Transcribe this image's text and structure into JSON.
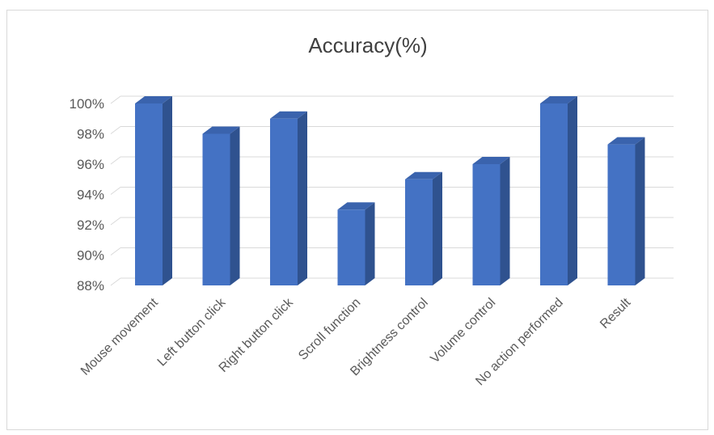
{
  "chart_data": {
    "type": "bar",
    "title": "Accuracy(%)",
    "categories": [
      "Mouse movement",
      "Left button click",
      "Right button click",
      "Scroll function",
      "Brightness control",
      "Volume control",
      "No action performed",
      "Result"
    ],
    "values": [
      100,
      98,
      99,
      93,
      95,
      96,
      100,
      97.3
    ],
    "ylim": [
      88,
      100
    ],
    "yticks": [
      "88%",
      "90%",
      "92%",
      "94%",
      "96%",
      "98%",
      "100%"
    ],
    "ytick_values": [
      88,
      90,
      92,
      94,
      96,
      98,
      100
    ],
    "grid": true,
    "legend": "none",
    "bar_style": "3d-column",
    "colors": {
      "bar_front": "#4472c4",
      "bar_side": "#2f528f",
      "bar_top": "#3a63ad",
      "grid": "#d9d9d9",
      "text": "#595959"
    }
  }
}
